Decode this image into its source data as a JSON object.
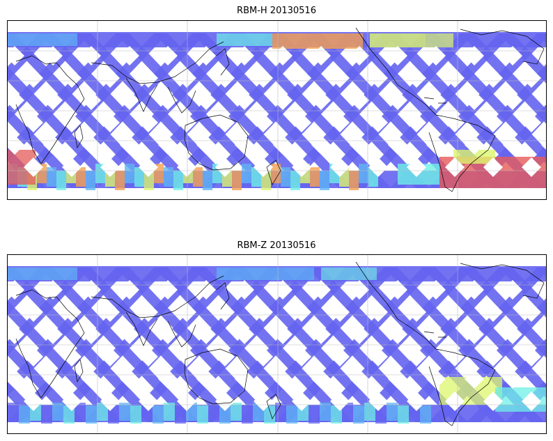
{
  "panels": [
    {
      "title": "RBM-H 20130516",
      "variant": "H"
    },
    {
      "title": "RBM-Z 20130516",
      "variant": "Z"
    }
  ],
  "colors": {
    "low": "#6464f0",
    "mid_low": "#5fb4f5",
    "mid": "#6ef0e6",
    "mid_high": "#dcf56e",
    "high": "#f5a050",
    "peak": "#e65a5a",
    "coast": "#000000",
    "grid": "#bbbbbb"
  },
  "swath": {
    "latitude_range": [
      -70,
      70
    ],
    "track_count": 14,
    "gaps": "diamond-shaped between ascending and descending passes"
  }
}
